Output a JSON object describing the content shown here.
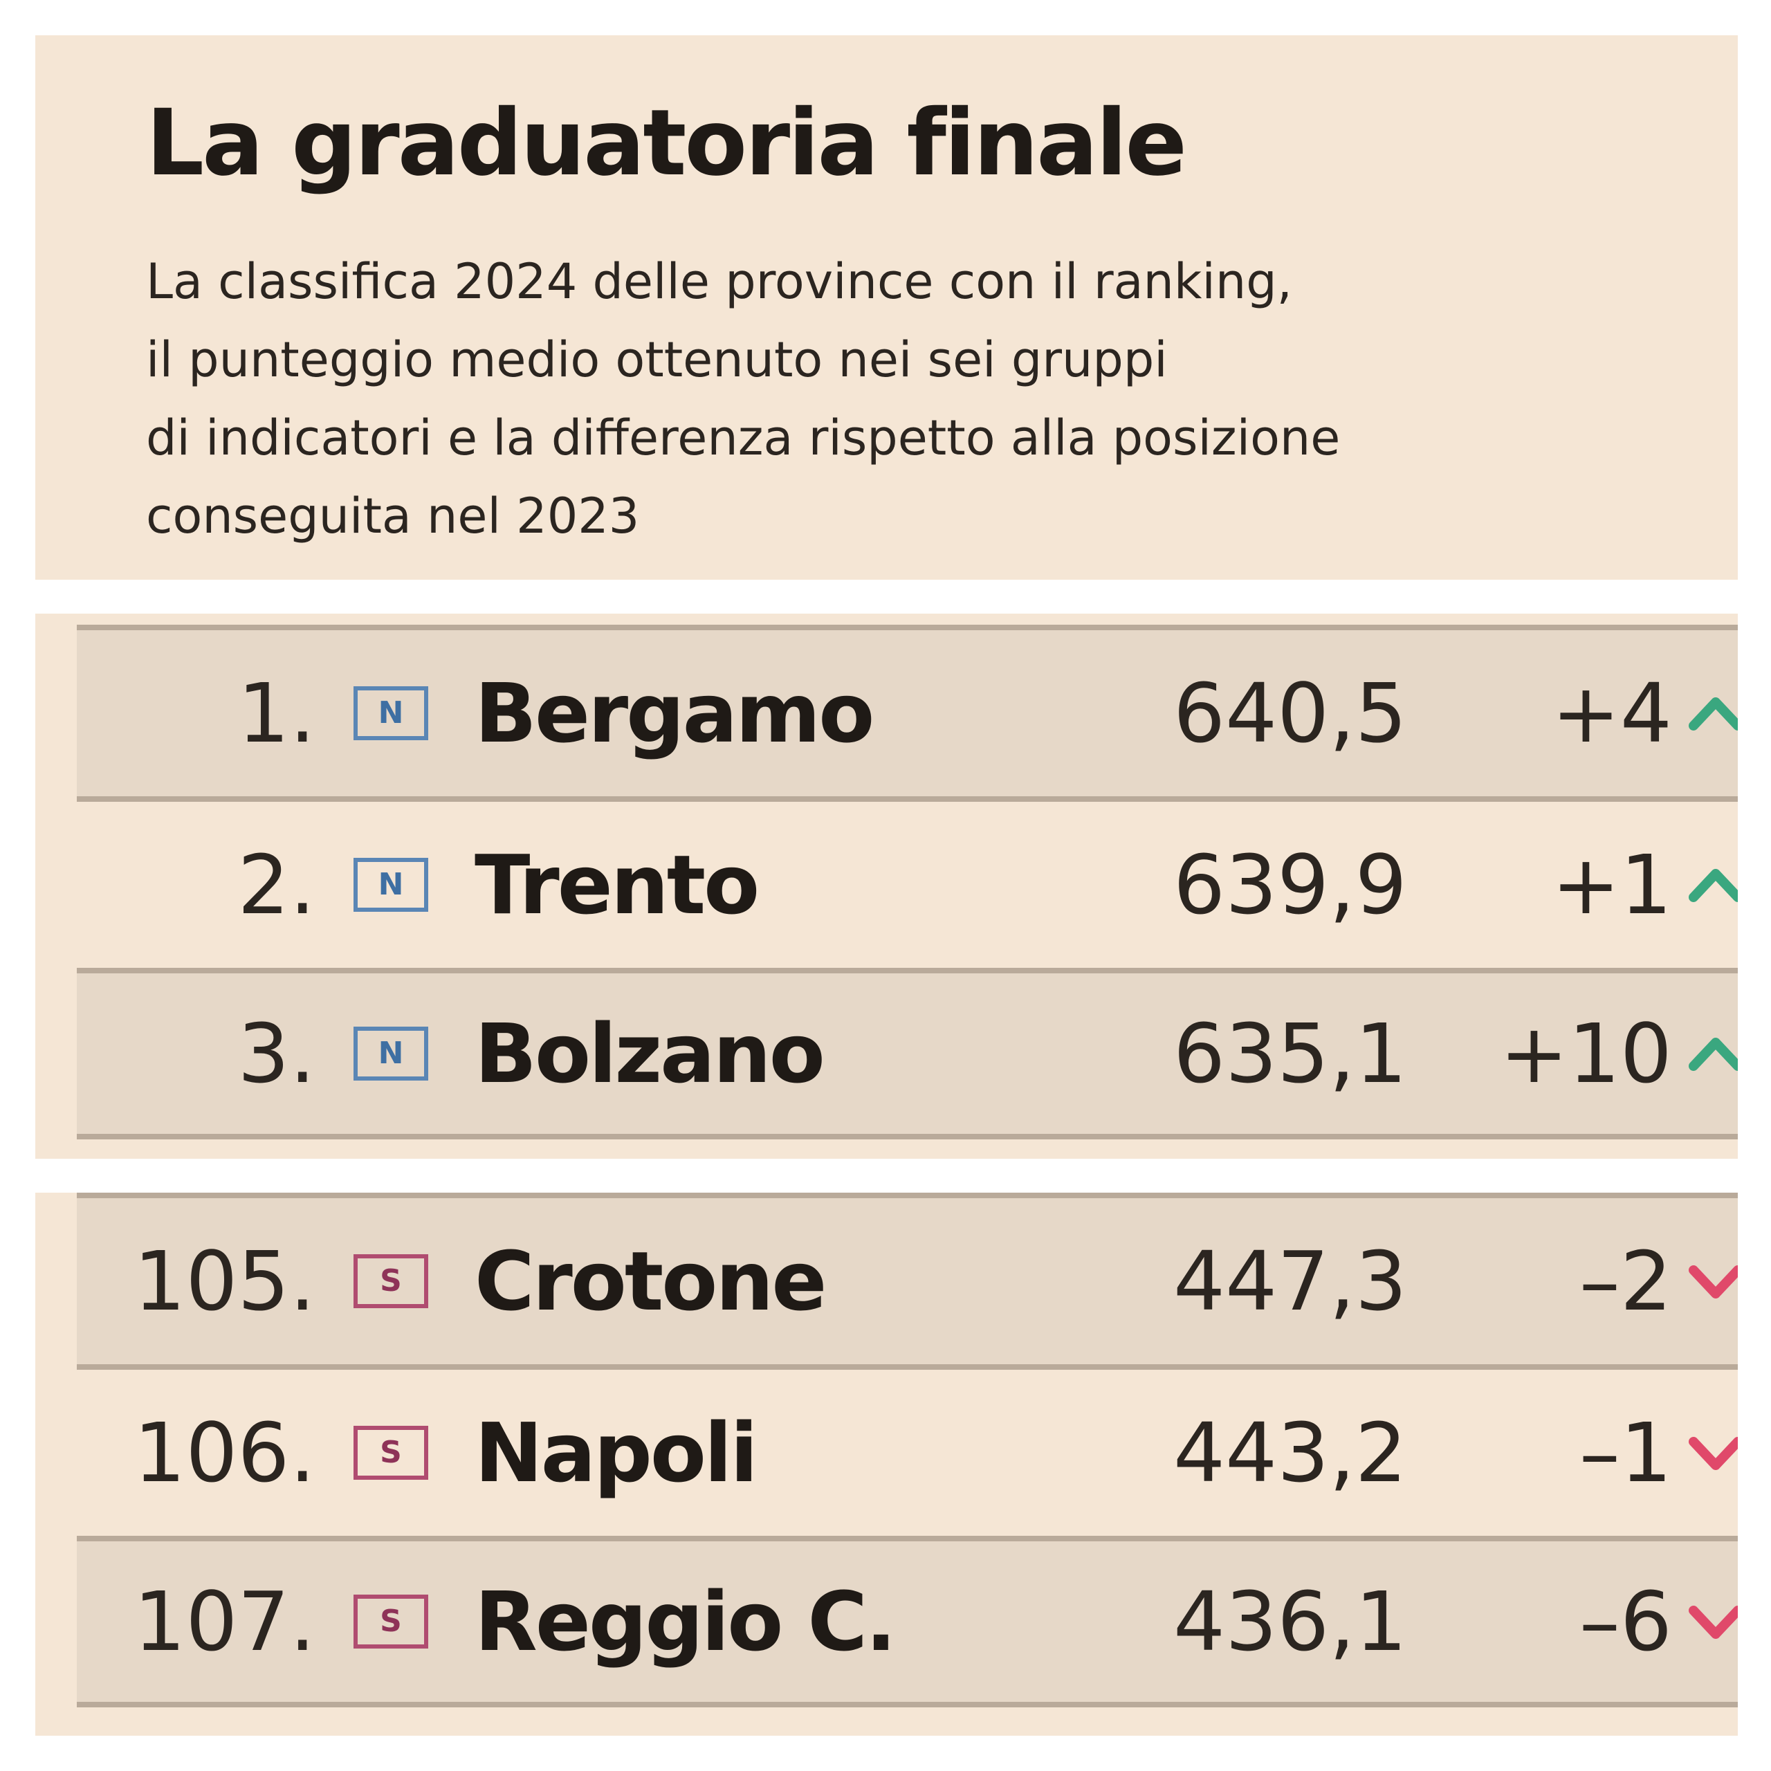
{
  "header": {
    "title": "La graduatoria finale",
    "subtitle_lines": [
      "La classifica 2024 delle province con il ranking,",
      "il punteggio medio ottenuto nei sei gruppi",
      "di indicatori e la differenza rispetto alla posizione",
      "conseguita nel 2023"
    ]
  },
  "colors": {
    "background": "#f5e6d5",
    "row_shade": "#e6d8c8",
    "separator": "#b9aa9a",
    "north_badge": "#5a86b5",
    "south_badge": "#b04c70",
    "up_arrow": "#3aa77f",
    "down_arrow": "#e0496a"
  },
  "chart_data": {
    "type": "table",
    "title": "La graduatoria finale",
    "subtitle": "La classifica 2024 delle province con il ranking, il punteggio medio ottenuto nei sei gruppi di indicatori e la differenza rispetto alla posizione conseguita nel 2023",
    "groups": [
      {
        "rows": [
          {
            "rank": "1.",
            "area": "N",
            "name": "Bergamo",
            "score": "640,5",
            "change": "+4",
            "direction": "up"
          },
          {
            "rank": "2.",
            "area": "N",
            "name": "Trento",
            "score": "639,9",
            "change": "+1",
            "direction": "up"
          },
          {
            "rank": "3.",
            "area": "N",
            "name": "Bolzano",
            "score": "635,1",
            "change": "+10",
            "direction": "up"
          }
        ]
      },
      {
        "rows": [
          {
            "rank": "105.",
            "area": "S",
            "name": "Crotone",
            "score": "447,3",
            "change": "–2",
            "direction": "down"
          },
          {
            "rank": "106.",
            "area": "S",
            "name": "Napoli",
            "score": "443,2",
            "change": "–1",
            "direction": "down"
          },
          {
            "rank": "107.",
            "area": "S",
            "name": "Reggio C.",
            "score": "436,1",
            "change": "–6",
            "direction": "down"
          }
        ]
      }
    ]
  }
}
